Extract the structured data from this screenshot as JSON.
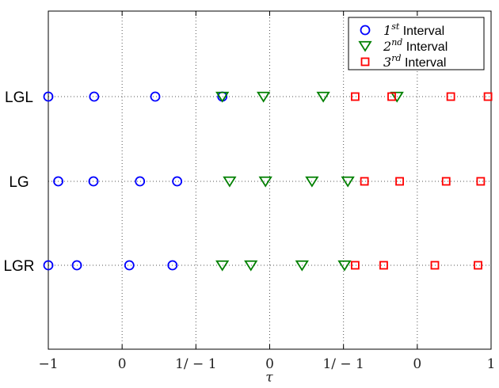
{
  "chart_data": {
    "type": "scatter",
    "xlabel": "τ",
    "ylabel": "",
    "title": "",
    "grid": true,
    "legend_placement": "top-right",
    "x_tick_labels": [
      "−1",
      "0",
      "1/ − 1",
      "0",
      "1/ − 1",
      "0",
      "1"
    ],
    "categories": [
      "LGL",
      "LG",
      "LGR"
    ],
    "series": [
      {
        "name": "1st Interval",
        "name_base": "1",
        "name_sup": "st",
        "name_rest": " Interval",
        "marker": "circle",
        "color": "#0000ff",
        "points": [
          {
            "row": "LGL",
            "x": [
              -1.0,
              -0.655,
              -0.195,
              0.31
            ]
          },
          {
            "row": "LG",
            "x": [
              -0.925,
              -0.66,
              -0.31,
              -0.03
            ]
          },
          {
            "row": "LGR",
            "x": [
              -1.0,
              -0.785,
              -0.39,
              -0.065
            ]
          }
        ]
      },
      {
        "name": "2nd Interval",
        "name_base": "2",
        "name_sup": "nd",
        "name_rest": " Interval",
        "marker": "triangle-down",
        "color": "#008000",
        "points": [
          {
            "row": "LGL",
            "x": [
              0.31,
              0.62,
              1.07,
              1.625
            ]
          },
          {
            "row": "LG",
            "x": [
              0.365,
              0.635,
              0.985,
              1.255
            ]
          },
          {
            "row": "LGR",
            "x": [
              0.31,
              0.525,
              0.91,
              1.23
            ]
          }
        ]
      },
      {
        "name": "3rd Interval",
        "name_base": "3",
        "name_sup": "rd",
        "name_rest": " Interval",
        "marker": "square",
        "color": "#ff0000",
        "points": [
          {
            "row": "LGL",
            "x": [
              1.31,
              1.585,
              2.03,
              2.31
            ]
          },
          {
            "row": "LG",
            "x": [
              1.38,
              1.645,
              1.995,
              2.255
            ]
          },
          {
            "row": "LGR",
            "x": [
              1.31,
              1.525,
              1.91,
              2.235
            ]
          }
        ]
      }
    ]
  }
}
